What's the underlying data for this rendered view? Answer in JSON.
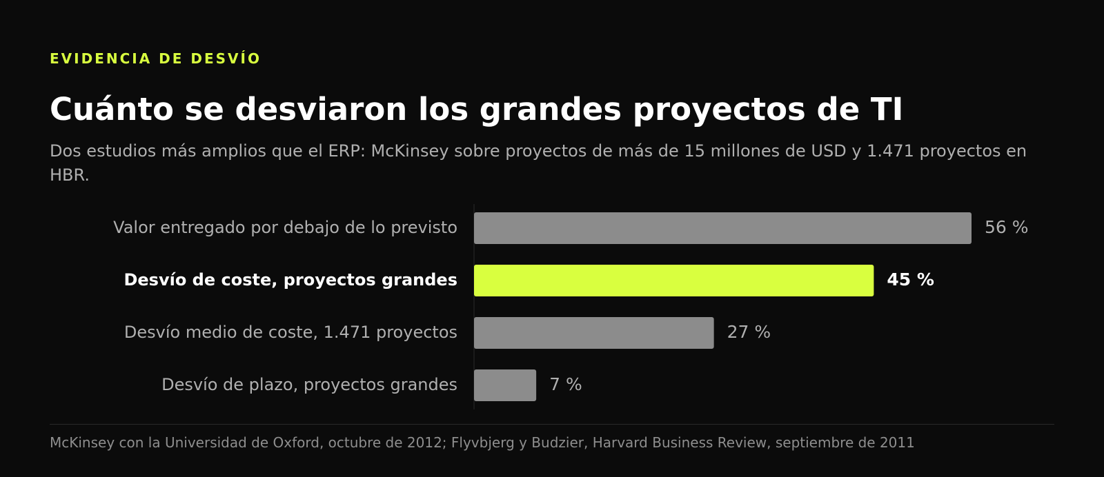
{
  "header": {
    "eyebrow": "EVIDENCIA DE DESVÍO",
    "title": "Cuánto se desviaron los grandes proyectos de TI",
    "subtitle": "Dos estudios más amplios que el ERP: McKinsey sobre proyectos de más de 15 millones de USD y 1.471 proyectos en HBR."
  },
  "chart_data": {
    "type": "bar",
    "orientation": "horizontal",
    "categories": [
      "Valor entregado por debajo de lo previsto",
      "Desvío de coste, proyectos grandes",
      "Desvío medio de coste, 1.471 proyectos",
      "Desvío de plazo, proyectos grandes"
    ],
    "values": [
      56,
      45,
      27,
      7
    ],
    "value_labels": [
      "56 %",
      "45 %",
      "27 %",
      "7 %"
    ],
    "highlight_index": 1,
    "xlim": [
      0,
      56
    ],
    "grid": false,
    "colors": {
      "default_bar": "#8c8c8c",
      "highlight_bar": "#d9ff3f",
      "label": "#b0b0b0",
      "highlight_label": "#ffffff",
      "axis": "#2a2a2a"
    }
  },
  "footer": {
    "source": "McKinsey con la Universidad de Oxford, octubre de 2012; Flyvbjerg y Budzier, Harvard Business Review, septiembre de 2011"
  }
}
